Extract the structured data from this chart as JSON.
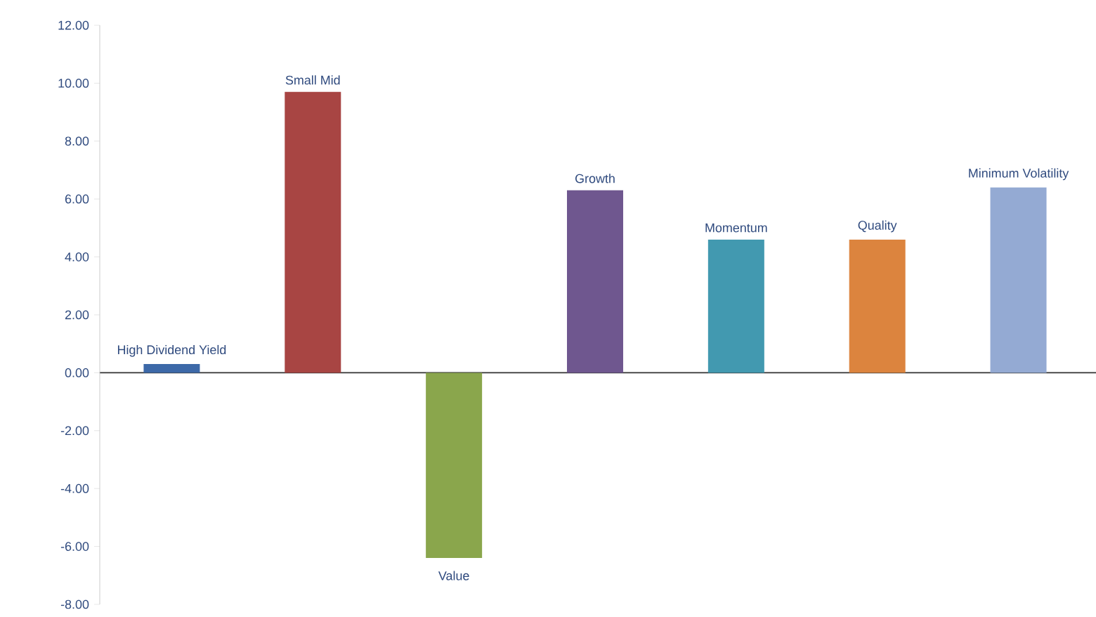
{
  "chart_data": {
    "type": "bar",
    "categories": [
      "High Dividend Yield",
      "Small Mid",
      "Value",
      "Growth",
      "Momentum",
      "Quality",
      "Minimum Volatility"
    ],
    "values": [
      0.3,
      9.7,
      -6.4,
      6.3,
      4.6,
      4.6,
      6.4
    ],
    "colors": [
      "#3d69a8",
      "#a84543",
      "#8aa64c",
      "#6f578f",
      "#4299b0",
      "#dc843e",
      "#94aad3"
    ],
    "ylim": [
      -8,
      12
    ],
    "yticks": [
      {
        "value": -8,
        "label": "-8.00"
      },
      {
        "value": -6,
        "label": "-6.00"
      },
      {
        "value": -4,
        "label": "-4.00"
      },
      {
        "value": -2,
        "label": "-2.00"
      },
      {
        "value": 0,
        "label": "0.00"
      },
      {
        "value": 2,
        "label": "2.00"
      },
      {
        "value": 4,
        "label": "4.00"
      },
      {
        "value": 6,
        "label": "6.00"
      },
      {
        "value": 8,
        "label": "8.00"
      },
      {
        "value": 10,
        "label": "10.00"
      },
      {
        "value": 12,
        "label": "12.00"
      }
    ],
    "tick_labels": "y"
  }
}
